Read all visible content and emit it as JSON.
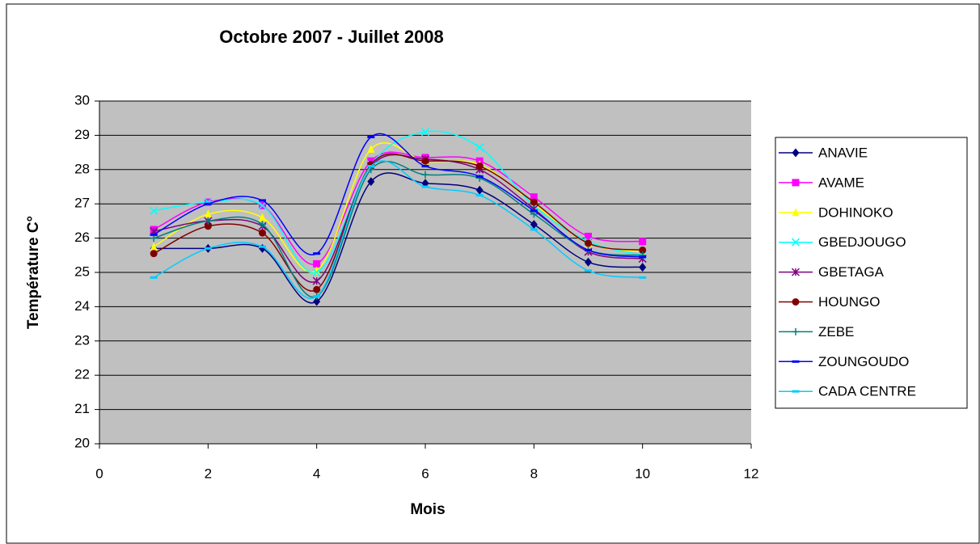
{
  "chart_data": {
    "type": "line",
    "title": "Octobre 2007 - Juillet 2008",
    "x_label": "Mois",
    "y_label": "Température C°",
    "x": [
      1,
      2,
      3,
      4,
      5,
      6,
      7,
      8,
      9,
      10
    ],
    "xlim": [
      0,
      12
    ],
    "xticks": [
      0,
      2,
      4,
      6,
      8,
      10,
      12
    ],
    "ylim": [
      20,
      30
    ],
    "yticks": [
      20,
      21,
      22,
      23,
      24,
      25,
      26,
      27,
      28,
      29,
      30
    ],
    "grid": true,
    "smooth": true,
    "legend": "right",
    "series": [
      {
        "name": "ANAVIE",
        "color": "#000080",
        "marker": "diamond",
        "values": [
          25.7,
          25.7,
          25.7,
          24.15,
          27.65,
          27.6,
          27.4,
          26.4,
          25.3,
          25.15
        ]
      },
      {
        "name": "AVAME",
        "color": "#ff00ff",
        "marker": "square",
        "values": [
          26.25,
          27.05,
          26.95,
          25.25,
          28.25,
          28.35,
          28.25,
          27.2,
          26.05,
          25.9
        ]
      },
      {
        "name": "DOHINOKO",
        "color": "#ffff00",
        "marker": "triangle",
        "values": [
          25.75,
          26.7,
          26.6,
          25.05,
          28.6,
          28.25,
          28.15,
          27.0,
          25.85,
          25.6
        ]
      },
      {
        "name": "GBEDJOUGO",
        "color": "#00ffff",
        "marker": "x",
        "values": [
          26.8,
          27.05,
          26.95,
          25.0,
          28.15,
          29.1,
          28.65,
          26.95,
          25.9,
          25.5
        ]
      },
      {
        "name": "GBETAGA",
        "color": "#800080",
        "marker": "star",
        "values": [
          26.2,
          26.5,
          26.35,
          24.75,
          28.1,
          28.3,
          28.0,
          26.85,
          25.6,
          25.4
        ]
      },
      {
        "name": "HOUNGO",
        "color": "#800000",
        "marker": "circle",
        "values": [
          25.55,
          26.35,
          26.15,
          24.5,
          28.15,
          28.25,
          28.1,
          27.05,
          25.85,
          25.65
        ]
      },
      {
        "name": "ZEBE",
        "color": "#008080",
        "marker": "plus",
        "values": [
          26.0,
          26.5,
          26.4,
          24.3,
          28.0,
          27.85,
          27.75,
          26.7,
          25.65,
          25.5
        ]
      },
      {
        "name": "ZOUNGOUDO",
        "color": "#0000ff",
        "marker": "dash",
        "values": [
          26.1,
          27.0,
          27.1,
          25.55,
          28.95,
          28.1,
          27.8,
          26.8,
          25.65,
          25.45
        ]
      },
      {
        "name": "CADA CENTRE",
        "color": "#00ccff",
        "marker": "dash",
        "values": [
          24.85,
          25.7,
          25.75,
          24.3,
          28.1,
          27.5,
          27.25,
          26.25,
          25.05,
          24.85
        ]
      }
    ]
  }
}
